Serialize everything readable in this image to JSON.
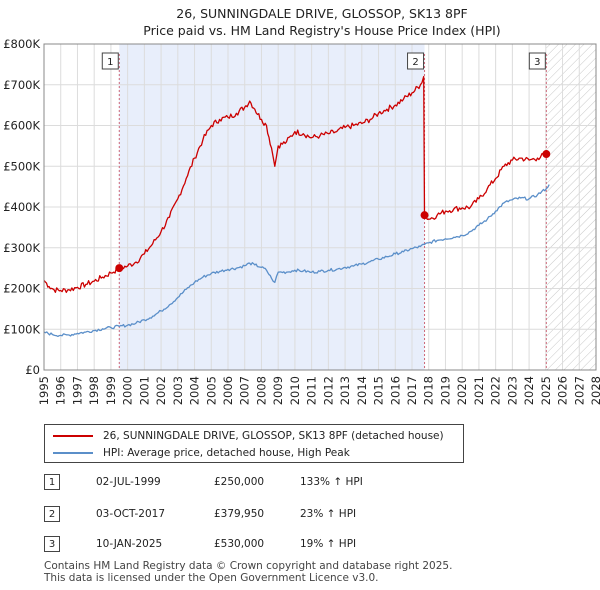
{
  "chart_data": {
    "type": "line",
    "title": "26, SUNNINGDALE DRIVE, GLOSSOP, SK13 8PF",
    "subtitle": "Price paid vs. HM Land Registry's House Price Index (HPI)",
    "xlabel": "",
    "ylabel": "",
    "xlim": [
      1995,
      2028
    ],
    "ylim": [
      0,
      800000
    ],
    "x_ticks": [
      1995,
      1996,
      1997,
      1998,
      1999,
      2000,
      2001,
      2002,
      2003,
      2004,
      2005,
      2006,
      2007,
      2008,
      2009,
      2010,
      2011,
      2012,
      2013,
      2014,
      2015,
      2016,
      2017,
      2018,
      2019,
      2020,
      2021,
      2022,
      2023,
      2024,
      2025,
      2026,
      2027,
      2028
    ],
    "y_ticks": [
      {
        "value": 0,
        "label": "£0"
      },
      {
        "value": 100000,
        "label": "£100K"
      },
      {
        "value": 200000,
        "label": "£200K"
      },
      {
        "value": 300000,
        "label": "£300K"
      },
      {
        "value": 400000,
        "label": "£400K"
      },
      {
        "value": 500000,
        "label": "£500K"
      },
      {
        "value": 600000,
        "label": "£600K"
      },
      {
        "value": 700000,
        "label": "£700K"
      },
      {
        "value": 800000,
        "label": "£800K"
      }
    ],
    "grid": true,
    "series": [
      {
        "name": "26, SUNNINGDALE DRIVE, GLOSSOP, SK13 8PF (detached house)",
        "color": "#cc0000",
        "points": [
          [
            1995.0,
            220000
          ],
          [
            1995.3,
            205000
          ],
          [
            1995.6,
            197000
          ],
          [
            1996.0,
            195000
          ],
          [
            1996.5,
            197000
          ],
          [
            1997.0,
            203000
          ],
          [
            1997.5,
            210000
          ],
          [
            1998.0,
            218000
          ],
          [
            1998.5,
            228000
          ],
          [
            1999.0,
            238000
          ],
          [
            1999.5,
            250000
          ],
          [
            2000.0,
            255000
          ],
          [
            2000.5,
            265000
          ],
          [
            2001.0,
            285000
          ],
          [
            2001.5,
            310000
          ],
          [
            2002.0,
            340000
          ],
          [
            2002.5,
            375000
          ],
          [
            2003.0,
            420000
          ],
          [
            2003.5,
            470000
          ],
          [
            2004.0,
            520000
          ],
          [
            2004.5,
            565000
          ],
          [
            2005.0,
            600000
          ],
          [
            2005.5,
            615000
          ],
          [
            2006.0,
            620000
          ],
          [
            2006.5,
            630000
          ],
          [
            2007.0,
            645000
          ],
          [
            2007.3,
            660000
          ],
          [
            2007.6,
            640000
          ],
          [
            2008.0,
            615000
          ],
          [
            2008.3,
            600000
          ],
          [
            2008.6,
            545000
          ],
          [
            2008.8,
            500000
          ],
          [
            2009.0,
            550000
          ],
          [
            2009.5,
            560000
          ],
          [
            2010.0,
            585000
          ],
          [
            2010.5,
            580000
          ],
          [
            2011.0,
            570000
          ],
          [
            2011.5,
            575000
          ],
          [
            2012.0,
            580000
          ],
          [
            2012.5,
            585000
          ],
          [
            2013.0,
            595000
          ],
          [
            2013.5,
            600000
          ],
          [
            2014.0,
            605000
          ],
          [
            2014.5,
            615000
          ],
          [
            2015.0,
            630000
          ],
          [
            2015.5,
            640000
          ],
          [
            2016.0,
            650000
          ],
          [
            2016.5,
            665000
          ],
          [
            2017.0,
            680000
          ],
          [
            2017.5,
            700000
          ],
          [
            2017.7,
            720000
          ],
          [
            2017.75,
            379950
          ],
          [
            2018.0,
            370000
          ],
          [
            2018.5,
            380000
          ],
          [
            2019.0,
            390000
          ],
          [
            2019.5,
            395000
          ],
          [
            2020.0,
            398000
          ],
          [
            2020.5,
            400000
          ],
          [
            2021.0,
            420000
          ],
          [
            2021.5,
            445000
          ],
          [
            2022.0,
            470000
          ],
          [
            2022.5,
            500000
          ],
          [
            2023.0,
            515000
          ],
          [
            2023.5,
            520000
          ],
          [
            2024.0,
            515000
          ],
          [
            2024.5,
            520000
          ],
          [
            2025.03,
            530000
          ]
        ]
      },
      {
        "name": "HPI: Average price, detached house, High Peak",
        "color": "#5b8fc9",
        "points": [
          [
            1995.0,
            93000
          ],
          [
            1995.5,
            87000
          ],
          [
            1996.0,
            85000
          ],
          [
            1996.5,
            86000
          ],
          [
            1997.0,
            90000
          ],
          [
            1997.5,
            93000
          ],
          [
            1998.0,
            97000
          ],
          [
            1998.5,
            101000
          ],
          [
            1999.0,
            104000
          ],
          [
            1999.5,
            107000
          ],
          [
            2000.0,
            110000
          ],
          [
            2000.5,
            115000
          ],
          [
            2001.0,
            123000
          ],
          [
            2001.5,
            132000
          ],
          [
            2002.0,
            145000
          ],
          [
            2002.5,
            160000
          ],
          [
            2003.0,
            178000
          ],
          [
            2003.5,
            198000
          ],
          [
            2004.0,
            215000
          ],
          [
            2004.5,
            228000
          ],
          [
            2005.0,
            237000
          ],
          [
            2005.5,
            242000
          ],
          [
            2006.0,
            247000
          ],
          [
            2006.5,
            250000
          ],
          [
            2007.0,
            256000
          ],
          [
            2007.3,
            262000
          ],
          [
            2007.6,
            258000
          ],
          [
            2008.0,
            252000
          ],
          [
            2008.3,
            245000
          ],
          [
            2008.6,
            225000
          ],
          [
            2008.8,
            215000
          ],
          [
            2009.0,
            240000
          ],
          [
            2009.5,
            240000
          ],
          [
            2010.0,
            245000
          ],
          [
            2010.5,
            243000
          ],
          [
            2011.0,
            240000
          ],
          [
            2011.5,
            242000
          ],
          [
            2012.0,
            245000
          ],
          [
            2012.5,
            247000
          ],
          [
            2013.0,
            252000
          ],
          [
            2013.5,
            255000
          ],
          [
            2014.0,
            260000
          ],
          [
            2014.5,
            266000
          ],
          [
            2015.0,
            272000
          ],
          [
            2015.5,
            278000
          ],
          [
            2016.0,
            285000
          ],
          [
            2016.5,
            290000
          ],
          [
            2017.0,
            298000
          ],
          [
            2017.5,
            303000
          ],
          [
            2017.75,
            308000
          ],
          [
            2018.0,
            312000
          ],
          [
            2018.5,
            318000
          ],
          [
            2019.0,
            322000
          ],
          [
            2019.5,
            326000
          ],
          [
            2020.0,
            330000
          ],
          [
            2020.5,
            340000
          ],
          [
            2021.0,
            355000
          ],
          [
            2021.5,
            370000
          ],
          [
            2022.0,
            390000
          ],
          [
            2022.5,
            410000
          ],
          [
            2023.0,
            418000
          ],
          [
            2023.5,
            422000
          ],
          [
            2024.0,
            420000
          ],
          [
            2024.5,
            430000
          ],
          [
            2025.03,
            445000
          ],
          [
            2025.2,
            455000
          ]
        ]
      }
    ],
    "sales": [
      {
        "label": "1",
        "x": 1999.5,
        "value": 250000
      },
      {
        "label": "2",
        "x": 2017.75,
        "value": 379950
      },
      {
        "label": "3",
        "x": 2025.03,
        "value": 530000
      }
    ],
    "shaded_from": 1999.5,
    "shaded_to": 2017.75,
    "hatched_from": 2025.03
  },
  "legend": {
    "property": "26, SUNNINGDALE DRIVE, GLOSSOP, SK13 8PF (detached house)",
    "hpi": "HPI: Average price, detached house, High Peak"
  },
  "transactions": [
    {
      "num": "1",
      "date": "02-JUL-1999",
      "price": "£250,000",
      "pct": "133% ↑ HPI"
    },
    {
      "num": "2",
      "date": "03-OCT-2017",
      "price": "£379,950",
      "pct": "23% ↑ HPI"
    },
    {
      "num": "3",
      "date": "10-JAN-2025",
      "price": "£530,000",
      "pct": "19% ↑ HPI"
    }
  ],
  "footer": {
    "line1": "Contains HM Land Registry data © Crown copyright and database right 2025.",
    "line2": "This data is licensed under the Open Government Licence v3.0."
  },
  "colors": {
    "property": "#cc0000",
    "hpi": "#5b8fc9",
    "shade": "#e8eefb"
  }
}
